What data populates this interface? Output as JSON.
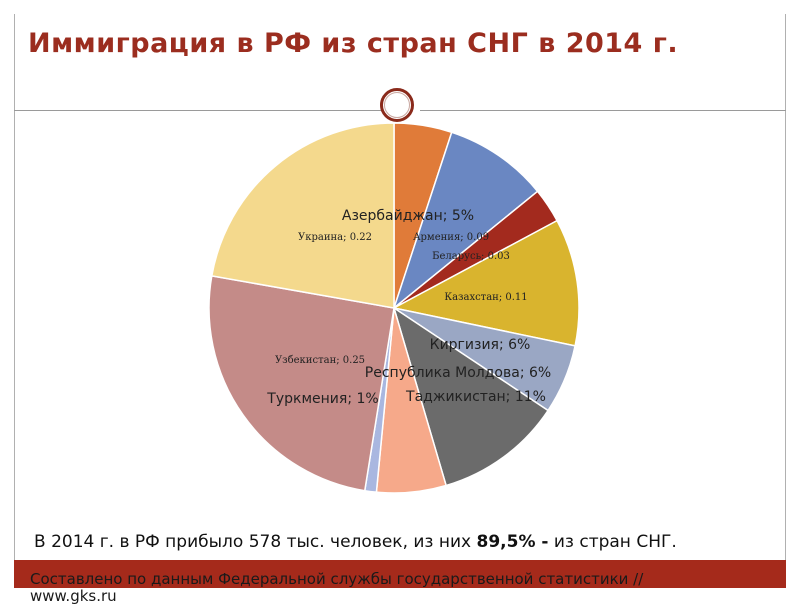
{
  "slide": {
    "title": "Иммиграция в РФ из стран СНГ в 2014 г.",
    "caption_plain": "В 2014 г. в РФ прибыло 578 тыс. человек, из них ",
    "caption_bold": "89,5% -",
    "caption_tail": " из стран СНГ.",
    "source_line": "Составлено по данным Федеральной службы государственной статистики //",
    "source_url": "www.gks.ru"
  },
  "chart_data": {
    "type": "pie",
    "slices": [
      {
        "name": "Азербайджан",
        "value": 0.05,
        "label": "Азербайджан; 5%",
        "color": "#e07b39"
      },
      {
        "name": "Армения",
        "value": 0.09,
        "label": "Армения; 0.09",
        "color": "#6a87c2"
      },
      {
        "name": "Беларусь",
        "value": 0.03,
        "label": "Беларусь; 0.03",
        "color": "#a32a1e"
      },
      {
        "name": "Казахстан",
        "value": 0.11,
        "label": "Казахстан; 0.11",
        "color": "#d9b42e"
      },
      {
        "name": "Киргизия",
        "value": 0.06,
        "label": "Киргизия; 6%",
        "color": "#9aa7c4"
      },
      {
        "name": "Таджикистан",
        "value": 0.11,
        "label": "Таджикистан; 11%",
        "color": "#6b6b6b"
      },
      {
        "name": "Республика Молдова",
        "value": 0.06,
        "label": "Республика Молдова; 6%",
        "color": "#f6a98a"
      },
      {
        "name": "Туркмения",
        "value": 0.01,
        "label": "Туркмения; 1%",
        "color": "#a9b7e0"
      },
      {
        "name": "Узбекистан",
        "value": 0.25,
        "label": "Узбекистан; 0.25",
        "color": "#c48b88"
      },
      {
        "name": "Украина",
        "value": 0.22,
        "label": "Украина; 0.22",
        "color": "#f4d98d"
      }
    ]
  }
}
